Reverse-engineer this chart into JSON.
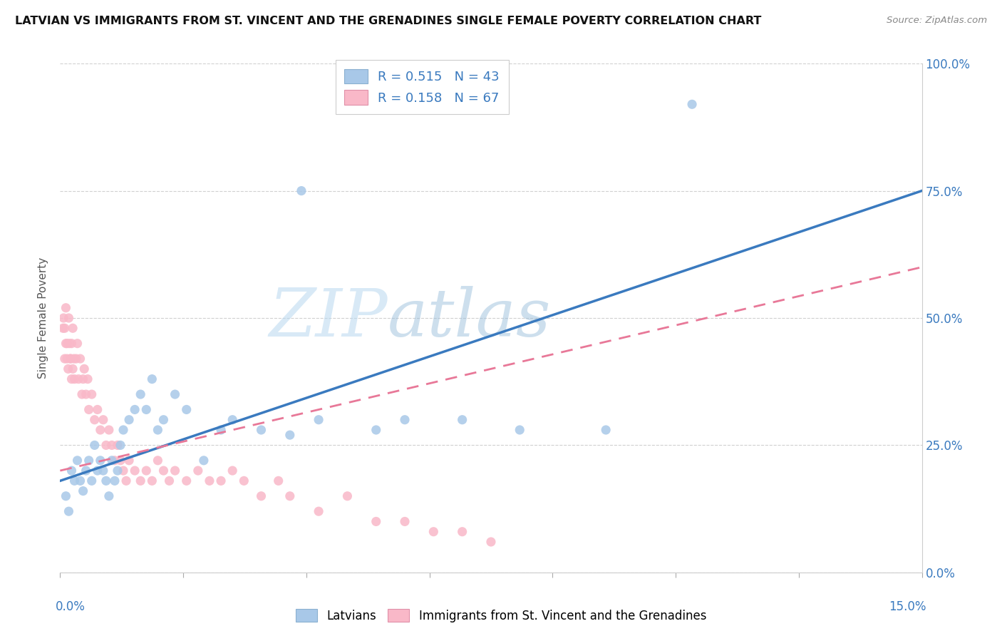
{
  "title": "LATVIAN VS IMMIGRANTS FROM ST. VINCENT AND THE GRENADINES SINGLE FEMALE POVERTY CORRELATION CHART",
  "source": "Source: ZipAtlas.com",
  "ylabel": "Single Female Poverty",
  "xlim": [
    0.0,
    15.0
  ],
  "ylim": [
    0.0,
    100.0
  ],
  "ytick_values": [
    0,
    25,
    50,
    75,
    100
  ],
  "series1_color": "#a8c8e8",
  "series2_color": "#f9b8c8",
  "series1_line_color": "#3a7abf",
  "series2_line_color": "#e87898",
  "line1_x0": 0.0,
  "line1_y0": 18.0,
  "line1_x1": 15.0,
  "line1_y1": 75.0,
  "line2_x0": 0.0,
  "line2_y0": 20.0,
  "line2_x1": 15.0,
  "line2_y1": 60.0,
  "latvian_x": [
    0.1,
    0.15,
    0.2,
    0.25,
    0.3,
    0.35,
    0.4,
    0.45,
    0.5,
    0.55,
    0.6,
    0.65,
    0.7,
    0.75,
    0.8,
    0.85,
    0.9,
    0.95,
    1.0,
    1.05,
    1.1,
    1.2,
    1.3,
    1.4,
    1.5,
    1.6,
    1.7,
    1.8,
    2.0,
    2.2,
    2.5,
    2.8,
    3.0,
    3.5,
    4.0,
    4.5,
    5.5,
    6.0,
    7.0,
    8.0,
    9.5,
    11.0,
    4.2
  ],
  "latvian_y": [
    15,
    12,
    20,
    18,
    22,
    18,
    16,
    20,
    22,
    18,
    25,
    20,
    22,
    20,
    18,
    15,
    22,
    18,
    20,
    25,
    28,
    30,
    32,
    35,
    32,
    38,
    28,
    30,
    35,
    32,
    22,
    28,
    30,
    28,
    27,
    30,
    28,
    30,
    30,
    28,
    28,
    92,
    75
  ],
  "svg_x": [
    0.05,
    0.08,
    0.1,
    0.12,
    0.15,
    0.18,
    0.2,
    0.22,
    0.25,
    0.28,
    0.3,
    0.32,
    0.35,
    0.38,
    0.4,
    0.42,
    0.45,
    0.48,
    0.5,
    0.55,
    0.6,
    0.65,
    0.7,
    0.75,
    0.8,
    0.85,
    0.9,
    0.95,
    1.0,
    1.05,
    1.1,
    1.15,
    1.2,
    1.3,
    1.4,
    1.5,
    1.6,
    1.7,
    1.8,
    1.9,
    2.0,
    2.2,
    2.4,
    2.6,
    2.8,
    3.0,
    3.2,
    3.5,
    3.8,
    4.0,
    4.5,
    5.0,
    5.5,
    6.0,
    6.5,
    7.0,
    7.5,
    0.06,
    0.08,
    0.1,
    0.12,
    0.14,
    0.16,
    0.18,
    0.2,
    0.22,
    0.24
  ],
  "svg_y": [
    48,
    42,
    52,
    45,
    50,
    42,
    45,
    48,
    38,
    42,
    45,
    38,
    42,
    35,
    38,
    40,
    35,
    38,
    32,
    35,
    30,
    32,
    28,
    30,
    25,
    28,
    25,
    22,
    25,
    22,
    20,
    18,
    22,
    20,
    18,
    20,
    18,
    22,
    20,
    18,
    20,
    18,
    20,
    18,
    18,
    20,
    18,
    15,
    18,
    15,
    12,
    15,
    10,
    10,
    8,
    8,
    6,
    50,
    48,
    45,
    42,
    40,
    45,
    42,
    38,
    40,
    42
  ]
}
